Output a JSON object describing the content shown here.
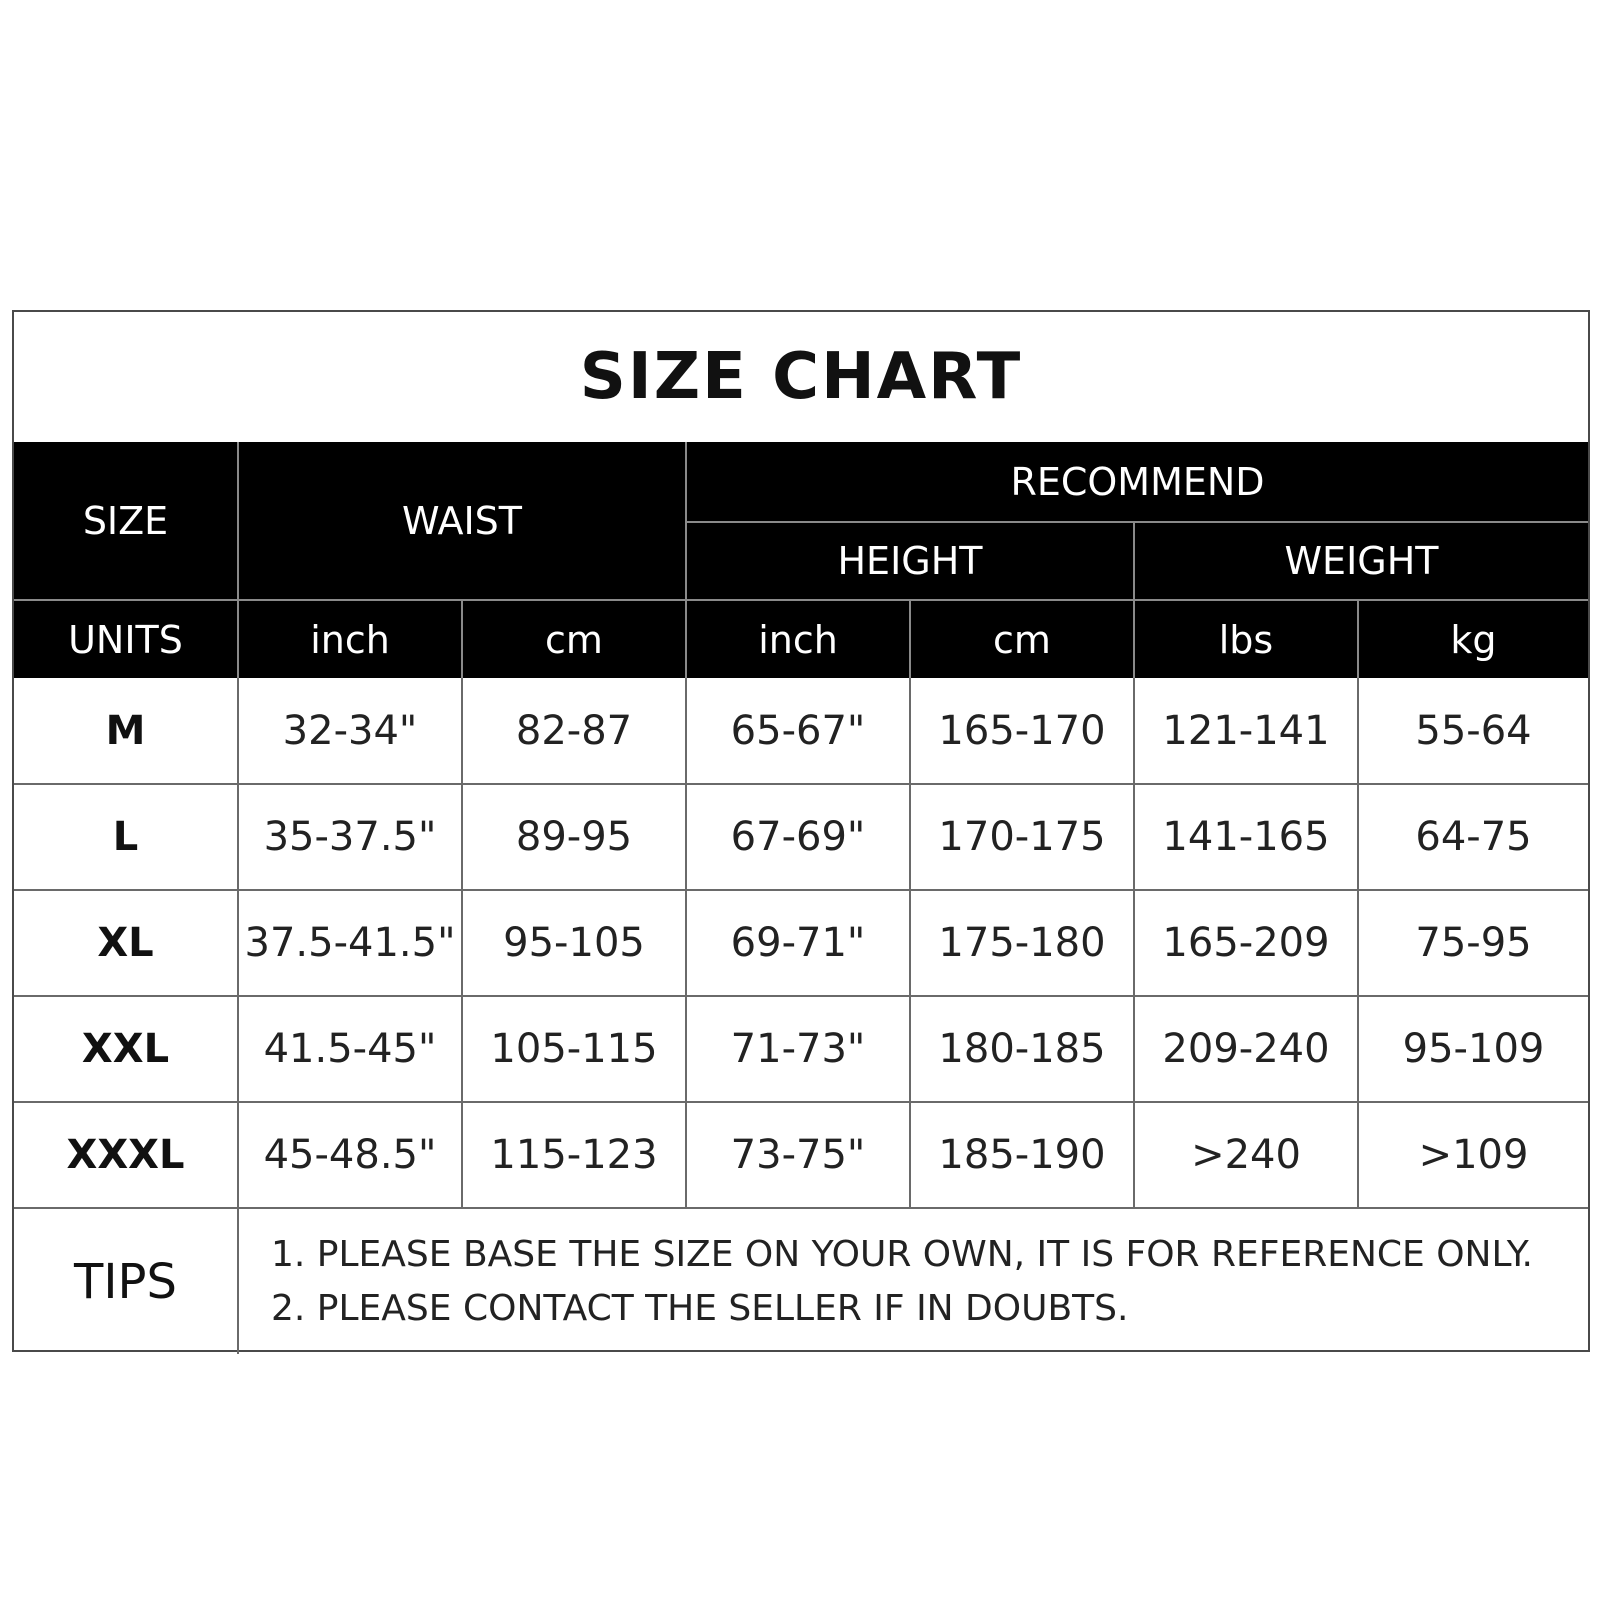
{
  "title": "SIZE CHART",
  "header": {
    "size": "SIZE",
    "waist": "WAIST",
    "recommend": "RECOMMEND",
    "height": "HEIGHT",
    "weight": "WEIGHT"
  },
  "units": {
    "label": "UNITS",
    "waist_inch": "inch",
    "waist_cm": "cm",
    "height_inch": "inch",
    "height_cm": "cm",
    "weight_lbs": "lbs",
    "weight_kg": "kg"
  },
  "rows": [
    {
      "size": "M",
      "waist_inch": "32-34\"",
      "waist_cm": "82-87",
      "height_inch": "65-67\"",
      "height_cm": "165-170",
      "weight_lbs": "121-141",
      "weight_kg": "55-64"
    },
    {
      "size": "L",
      "waist_inch": "35-37.5\"",
      "waist_cm": "89-95",
      "height_inch": "67-69\"",
      "height_cm": "170-175",
      "weight_lbs": "141-165",
      "weight_kg": "64-75"
    },
    {
      "size": "XL",
      "waist_inch": "37.5-41.5\"",
      "waist_cm": "95-105",
      "height_inch": "69-71\"",
      "height_cm": "175-180",
      "weight_lbs": "165-209",
      "weight_kg": "75-95"
    },
    {
      "size": "XXL",
      "waist_inch": "41.5-45\"",
      "waist_cm": "105-115",
      "height_inch": "71-73\"",
      "height_cm": "180-185",
      "weight_lbs": "209-240",
      "weight_kg": "95-109"
    },
    {
      "size": "XXXL",
      "waist_inch": "45-48.5\"",
      "waist_cm": "115-123",
      "height_inch": "73-75\"",
      "height_cm": "185-190",
      "weight_lbs": ">240",
      "weight_kg": ">109"
    }
  ],
  "tips": {
    "label": "TIPS",
    "lines": [
      "1. PLEASE BASE THE SIZE ON YOUR OWN, IT IS FOR REFERENCE ONLY.",
      "2. PLEASE CONTACT THE SELLER IF IN DOUBTS."
    ]
  }
}
